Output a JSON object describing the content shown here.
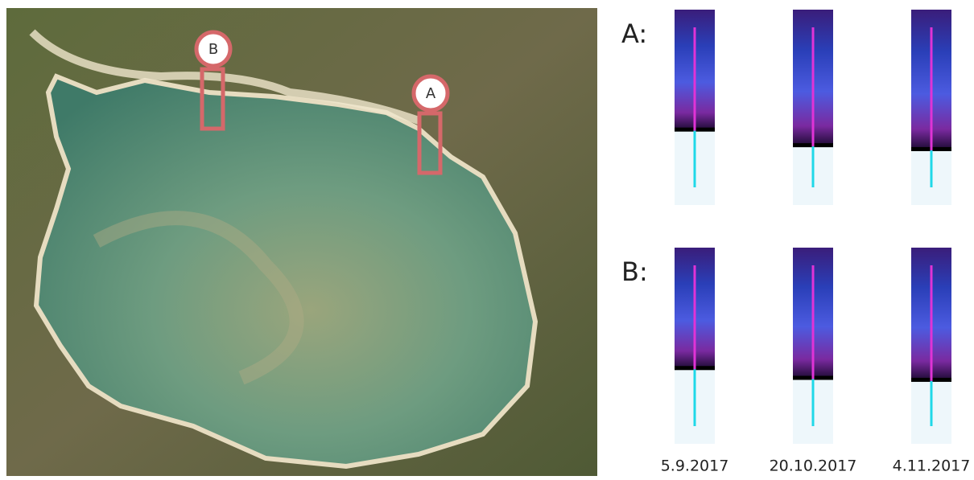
{
  "map": {
    "markers": [
      {
        "label": "B"
      },
      {
        "label": "A"
      }
    ]
  },
  "panels": {
    "rows": [
      {
        "label": "A:"
      },
      {
        "label": "B:"
      }
    ],
    "dates": [
      "5.9.2017",
      "20.10.2017",
      "4.11.2017"
    ]
  }
}
